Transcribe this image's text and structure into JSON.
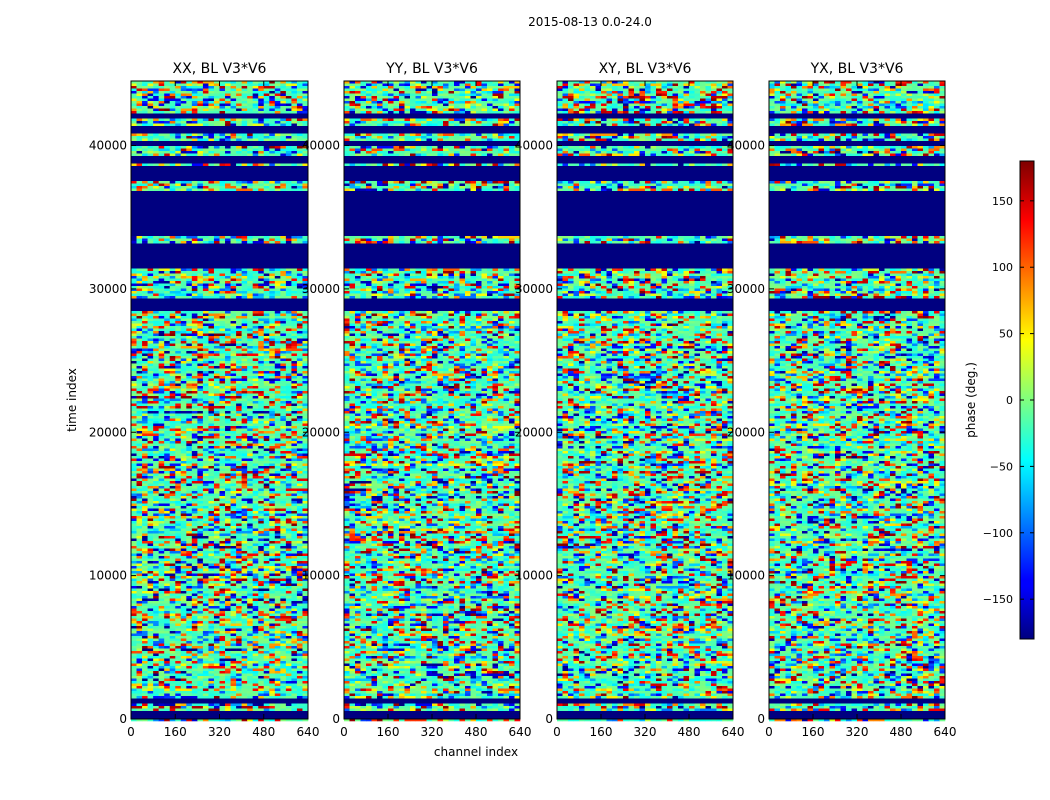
{
  "figure": {
    "suptitle": "2015-08-13 0.0-24.0"
  },
  "chart_data": {
    "type": "heatmap",
    "title": "2015-08-13 0.0-24.0",
    "xlabel": "channel index",
    "ylabel": "time index",
    "xlim": [
      0,
      640
    ],
    "ylim": [
      0,
      44500
    ],
    "x_ticks": [
      0,
      160,
      320,
      480,
      640
    ],
    "y_ticks": [
      0,
      10000,
      20000,
      30000,
      40000
    ],
    "colormap": "jet",
    "colorbar": {
      "label": "phase (deg.)",
      "range": [
        -180,
        180
      ],
      "ticks": [
        -150,
        -100,
        -50,
        0,
        50,
        100,
        150
      ],
      "tick_labels": [
        "−150",
        "−100",
        "−50",
        "0",
        "50",
        "100",
        "150"
      ],
      "placement": "right"
    },
    "panels": [
      {
        "title": "XX, BL V3*V6",
        "xlabel": "",
        "ylabel": "time index"
      },
      {
        "title": "YY, BL V3*V6",
        "xlabel": "channel index",
        "ylabel": ""
      },
      {
        "title": "XY, BL V3*V6",
        "xlabel": "",
        "ylabel": ""
      },
      {
        "title": "YX, BL V3*V6",
        "xlabel": "",
        "ylabel": ""
      }
    ],
    "flagged_time_ranges": [
      [
        0,
        500
      ],
      [
        1000,
        1400
      ],
      [
        28500,
        29300
      ],
      [
        31400,
        33200
      ],
      [
        33700,
        36900
      ],
      [
        37500,
        38500
      ],
      [
        38800,
        39200
      ],
      [
        39900,
        40400
      ],
      [
        40900,
        41300
      ],
      [
        41900,
        42300
      ]
    ],
    "flagged_phase_deg": -180
  },
  "colors": {
    "flagged": "#00007f",
    "axis": "#000000",
    "background": "#ffffff"
  }
}
